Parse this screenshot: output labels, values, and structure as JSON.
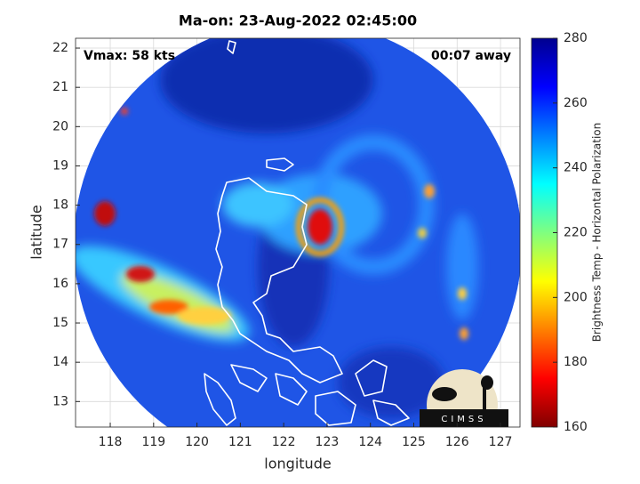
{
  "chart_data": {
    "type": "map",
    "title": "Ma-on: 23-Aug-2022 02:45:00",
    "annotations": [
      "Vmax: 58 kts",
      "00:07 away"
    ],
    "x_label": "longitude",
    "y_label": "latitude",
    "xlim": [
      117.2,
      127.45
    ],
    "xticks": [
      118,
      119,
      120,
      121,
      122,
      123,
      124,
      125,
      126,
      127
    ],
    "ylim": [
      12.35,
      22.25
    ],
    "yticks": [
      13,
      14,
      15,
      16,
      17,
      18,
      19,
      20,
      21,
      22
    ],
    "grid": true,
    "colorbar": {
      "label": "Brightness Temp - Horizontal Polarization",
      "clim": [
        160,
        280
      ],
      "ticks": [
        160,
        180,
        200,
        220,
        240,
        260,
        280
      ]
    },
    "logo": "CIMSS"
  }
}
